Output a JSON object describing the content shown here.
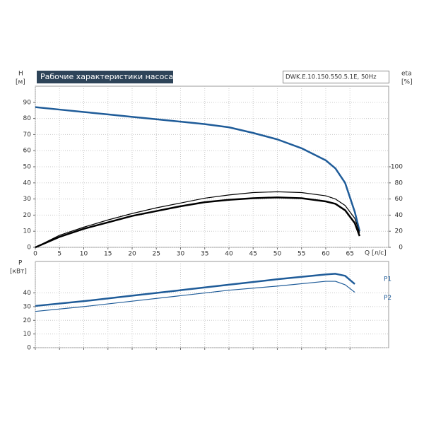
{
  "chart_data": [
    {
      "type": "line",
      "title": "Рабочие характеристики насоса",
      "subtitle": "DWK.E.10.150.550.5.1E, 50Hz",
      "ylabel": "H",
      "yunit": "[м]",
      "y2label": "eta",
      "y2unit": "[%]",
      "xlabel": "Q [л/с]",
      "x": [
        0,
        5,
        10,
        15,
        20,
        25,
        30,
        35,
        40,
        45,
        50,
        55,
        60,
        62,
        64,
        66,
        67
      ],
      "xlim": [
        0,
        73
      ],
      "xticks": [
        0,
        5,
        10,
        15,
        20,
        25,
        30,
        35,
        40,
        45,
        50,
        55,
        60,
        65
      ],
      "ylim": [
        0,
        100
      ],
      "yticks": [
        0,
        10,
        20,
        30,
        40,
        50,
        60,
        70,
        80,
        90
      ],
      "y2lim": [
        0,
        200
      ],
      "y2ticks": [
        0,
        20,
        40,
        60,
        80,
        100
      ],
      "grid": true,
      "series": [
        {
          "color": "#1f5c99",
          "linewidth": 2.5,
          "values": [
            87,
            85.5,
            84,
            82.5,
            81,
            79.5,
            78,
            76.5,
            74.5,
            71,
            67,
            61.5,
            54,
            49,
            40,
            22,
            10
          ]
        },
        {
          "color": "#000000",
          "linewidth": 1.2,
          "axis": "y2",
          "values": [
            0,
            15,
            25,
            34,
            42,
            49,
            55,
            61,
            65,
            68,
            69,
            68,
            64,
            60,
            52,
            36,
            18
          ]
        },
        {
          "color": "#000000",
          "linewidth": 2.5,
          "axis": "y2",
          "values": [
            0,
            13,
            23,
            31,
            39,
            45,
            51,
            56,
            59,
            61,
            62,
            61,
            57,
            54,
            46,
            30,
            14
          ]
        }
      ]
    },
    {
      "type": "line",
      "ylabel": "P",
      "yunit": "[кВт]",
      "x": [
        0,
        10,
        20,
        30,
        40,
        50,
        60,
        62,
        64,
        66
      ],
      "xlim": [
        0,
        73
      ],
      "xticks": [
        0,
        5,
        10,
        15,
        20,
        25,
        30,
        35,
        40,
        45,
        50,
        55,
        60,
        65
      ],
      "ylim": [
        0,
        63
      ],
      "yticks": [
        0,
        10,
        20,
        30,
        40
      ],
      "grid": true,
      "series": [
        {
          "name": "P1",
          "color": "#1f5c99",
          "linewidth": 2.5,
          "values": [
            30.5,
            34,
            38,
            42,
            46,
            50,
            53.5,
            54,
            52.5,
            46.5
          ]
        },
        {
          "name": "P2",
          "color": "#1f5c99",
          "linewidth": 1.2,
          "values": [
            26.5,
            30,
            34,
            38,
            42,
            45,
            48.5,
            48.5,
            46,
            40.5
          ]
        }
      ]
    }
  ]
}
